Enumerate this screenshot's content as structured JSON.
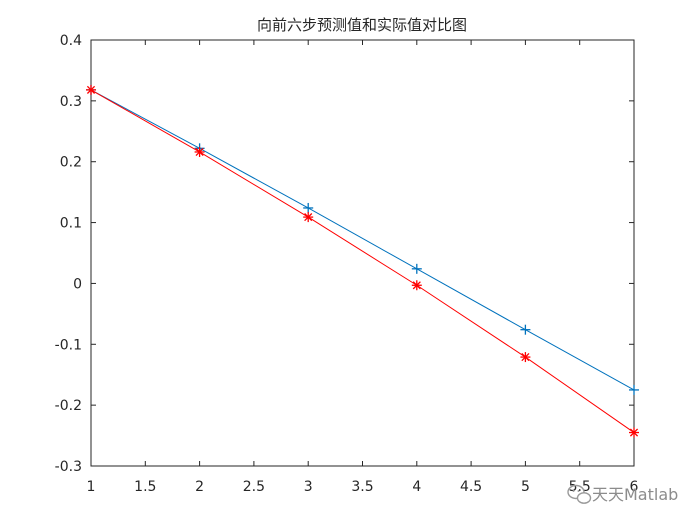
{
  "chart_data": {
    "type": "line",
    "title": "向前六步预测值和实际值对比图",
    "xlabel": "",
    "ylabel": "",
    "xlim": [
      1,
      6
    ],
    "ylim": [
      -0.3,
      0.4
    ],
    "x_ticks": [
      1,
      1.5,
      2,
      2.5,
      3,
      3.5,
      4,
      4.5,
      5,
      5.5,
      6
    ],
    "x_tick_labels": [
      "1",
      "1.5",
      "2",
      "2.5",
      "3",
      "3.5",
      "4",
      "4.5",
      "5",
      "5.5",
      "6"
    ],
    "y_ticks": [
      -0.3,
      -0.2,
      -0.1,
      0,
      0.1,
      0.2,
      0.3,
      0.4
    ],
    "y_tick_labels": [
      "-0.3",
      "-0.2",
      "-0.1",
      "0",
      "0.1",
      "0.2",
      "0.3",
      "0.4"
    ],
    "grid": false,
    "legend": "none",
    "x": [
      1,
      2,
      3,
      4,
      5,
      6
    ],
    "series": [
      {
        "marker": "+",
        "color": "#0072BD",
        "values": [
          0.318,
          0.222,
          0.124,
          0.024,
          -0.076,
          -0.175
        ]
      },
      {
        "marker": "*",
        "color": "#FF0000",
        "values": [
          0.318,
          0.216,
          0.109,
          -0.003,
          -0.121,
          -0.245
        ]
      }
    ]
  },
  "watermark": {
    "text": "天天Matlab",
    "icon": "wechat-icon"
  }
}
